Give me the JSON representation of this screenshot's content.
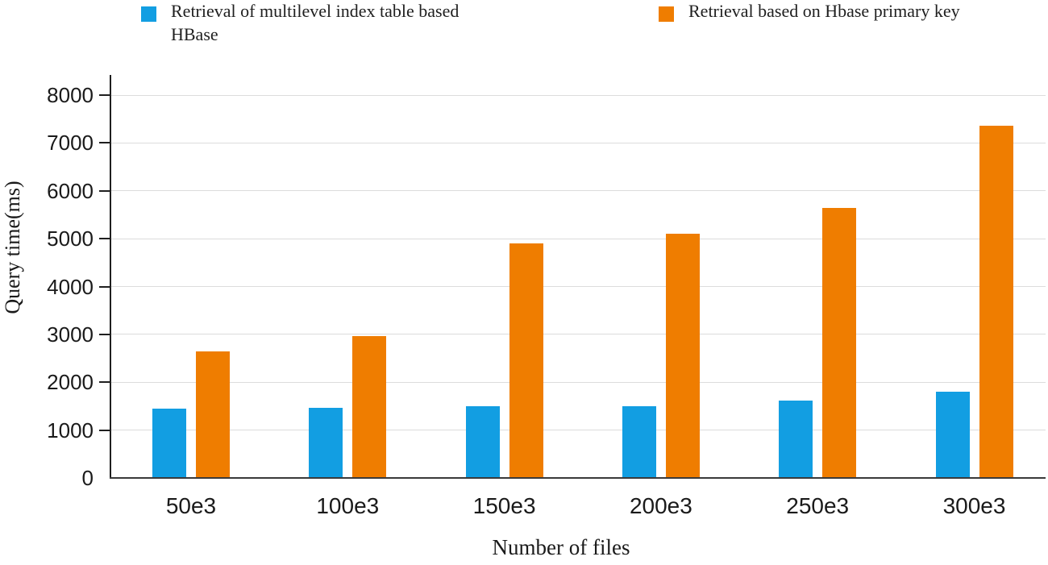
{
  "chart_data": {
    "type": "bar",
    "title": "",
    "xlabel": "Number of files",
    "ylabel": "Query time(ms)",
    "categories": [
      "50e3",
      "100e3",
      "150e3",
      "200e3",
      "250e3",
      "300e3"
    ],
    "series": [
      {
        "name": "Retrieval of multilevel index table based HBase",
        "color": "#129EE2",
        "values": [
          1450,
          1470,
          1500,
          1500,
          1620,
          1800
        ]
      },
      {
        "name": "Retrieval based on Hbase primary key",
        "color": "#EF7D00",
        "values": [
          2650,
          2970,
          4900,
          5100,
          5650,
          7360
        ]
      }
    ],
    "ylim": [
      0,
      8000
    ],
    "yticks": [
      0,
      1000,
      2000,
      3000,
      4000,
      5000,
      6000,
      7000,
      8000
    ],
    "grid": true,
    "legend_position": "top"
  }
}
